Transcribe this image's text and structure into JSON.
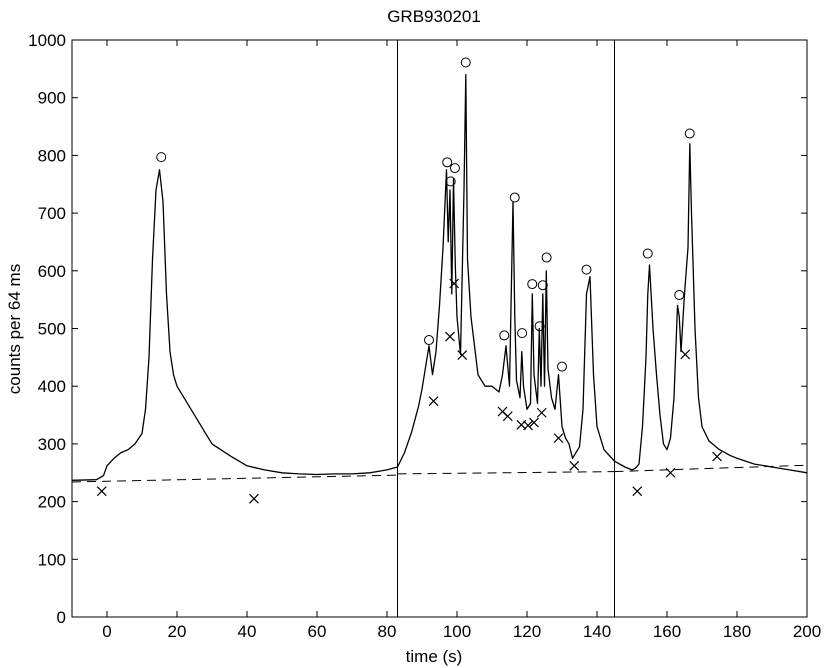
{
  "chart_data": {
    "type": "line",
    "title": "GRB930201",
    "xlabel": "time (s)",
    "ylabel": "counts per 64 ms",
    "xlim": [
      -10,
      200
    ],
    "ylim": [
      0,
      1000
    ],
    "xticks": [
      0,
      20,
      40,
      60,
      80,
      100,
      120,
      140,
      160,
      180,
      200
    ],
    "yticks": [
      0,
      100,
      200,
      300,
      400,
      500,
      600,
      700,
      800,
      900,
      1000
    ],
    "grid": false,
    "vertical_lines": [
      83,
      145
    ],
    "series": [
      {
        "style": "solid",
        "x": [
          -10,
          -3,
          -1,
          0,
          2,
          4,
          6,
          8,
          10,
          11,
          12,
          13,
          14,
          15,
          16,
          17,
          18,
          19,
          20,
          22,
          24,
          26,
          28,
          30,
          35,
          40,
          45,
          50,
          55,
          60,
          65,
          70,
          75,
          80,
          83,
          85,
          87,
          89,
          90,
          92,
          93,
          94,
          95,
          96,
          97,
          97.5,
          98,
          98.5,
          99,
          99.5,
          100,
          101,
          102,
          102.5,
          103,
          104,
          105,
          106,
          108,
          110,
          112,
          113,
          114,
          115,
          116,
          116.5,
          117,
          118,
          118.5,
          119,
          120,
          121,
          121.5,
          122,
          123,
          123.5,
          124,
          124.5,
          125,
          125.5,
          126,
          127,
          128,
          129,
          130,
          131,
          132,
          133,
          135,
          136,
          137,
          138,
          139,
          140,
          142,
          145,
          148,
          150,
          151,
          152,
          153,
          154,
          154.5,
          155,
          156,
          157,
          158,
          159,
          160,
          161,
          162,
          163,
          163.5,
          164,
          165,
          166,
          166.5,
          167,
          168,
          169,
          170,
          172,
          175,
          178,
          180,
          185,
          190,
          195,
          200
        ],
        "values": [
          237,
          238,
          245,
          262,
          275,
          285,
          290,
          300,
          318,
          360,
          450,
          620,
          740,
          775,
          720,
          560,
          460,
          420,
          400,
          380,
          360,
          340,
          320,
          300,
          280,
          262,
          255,
          250,
          248,
          247,
          248,
          248,
          250,
          255,
          260,
          285,
          320,
          365,
          395,
          470,
          420,
          460,
          540,
          640,
          775,
          650,
          740,
          560,
          760,
          610,
          520,
          455,
          740,
          940,
          620,
          520,
          470,
          420,
          400,
          400,
          390,
          420,
          470,
          400,
          720,
          520,
          410,
          380,
          460,
          400,
          360,
          370,
          560,
          420,
          370,
          500,
          400,
          560,
          400,
          600,
          430,
          380,
          360,
          420,
          330,
          310,
          300,
          275,
          295,
          360,
          560,
          590,
          420,
          330,
          290,
          270,
          260,
          255,
          258,
          265,
          330,
          450,
          560,
          610,
          500,
          420,
          350,
          300,
          290,
          310,
          380,
          540,
          520,
          460,
          560,
          640,
          820,
          700,
          500,
          380,
          330,
          305,
          290,
          280,
          275,
          265,
          260,
          255,
          250
        ]
      },
      {
        "style": "dashed",
        "segments": [
          {
            "x": [
              -10,
              83
            ],
            "values": [
              234,
              246
            ]
          },
          {
            "x": [
              83,
              145
            ],
            "values": [
              248,
              252
            ]
          },
          {
            "x": [
              145,
              200
            ],
            "values": [
              252,
              263
            ]
          }
        ]
      }
    ],
    "peak_markers_circle": [
      {
        "x": 15.5,
        "y": 797
      },
      {
        "x": 92,
        "y": 480
      },
      {
        "x": 97.2,
        "y": 788
      },
      {
        "x": 98.2,
        "y": 755
      },
      {
        "x": 99.4,
        "y": 778
      },
      {
        "x": 102.5,
        "y": 961
      },
      {
        "x": 113.5,
        "y": 488
      },
      {
        "x": 116.5,
        "y": 727
      },
      {
        "x": 118.6,
        "y": 492
      },
      {
        "x": 121.5,
        "y": 577
      },
      {
        "x": 123.6,
        "y": 504
      },
      {
        "x": 124.5,
        "y": 575
      },
      {
        "x": 125.6,
        "y": 623
      },
      {
        "x": 130,
        "y": 434
      },
      {
        "x": 137,
        "y": 602
      },
      {
        "x": 154.5,
        "y": 630
      },
      {
        "x": 163.5,
        "y": 558
      },
      {
        "x": 166.5,
        "y": 838
      }
    ],
    "valley_markers_x": [
      {
        "x": -1.5,
        "y": 218
      },
      {
        "x": 42,
        "y": 205
      },
      {
        "x": 93.3,
        "y": 374
      },
      {
        "x": 98,
        "y": 486
      },
      {
        "x": 99.2,
        "y": 578
      },
      {
        "x": 101.5,
        "y": 454
      },
      {
        "x": 113,
        "y": 356
      },
      {
        "x": 114.5,
        "y": 348
      },
      {
        "x": 118.4,
        "y": 333
      },
      {
        "x": 120.3,
        "y": 332
      },
      {
        "x": 122,
        "y": 337
      },
      {
        "x": 124.2,
        "y": 354
      },
      {
        "x": 129,
        "y": 310
      },
      {
        "x": 133.5,
        "y": 262
      },
      {
        "x": 151.5,
        "y": 218
      },
      {
        "x": 161,
        "y": 250
      },
      {
        "x": 165.2,
        "y": 455
      },
      {
        "x": 174.3,
        "y": 278
      }
    ]
  }
}
